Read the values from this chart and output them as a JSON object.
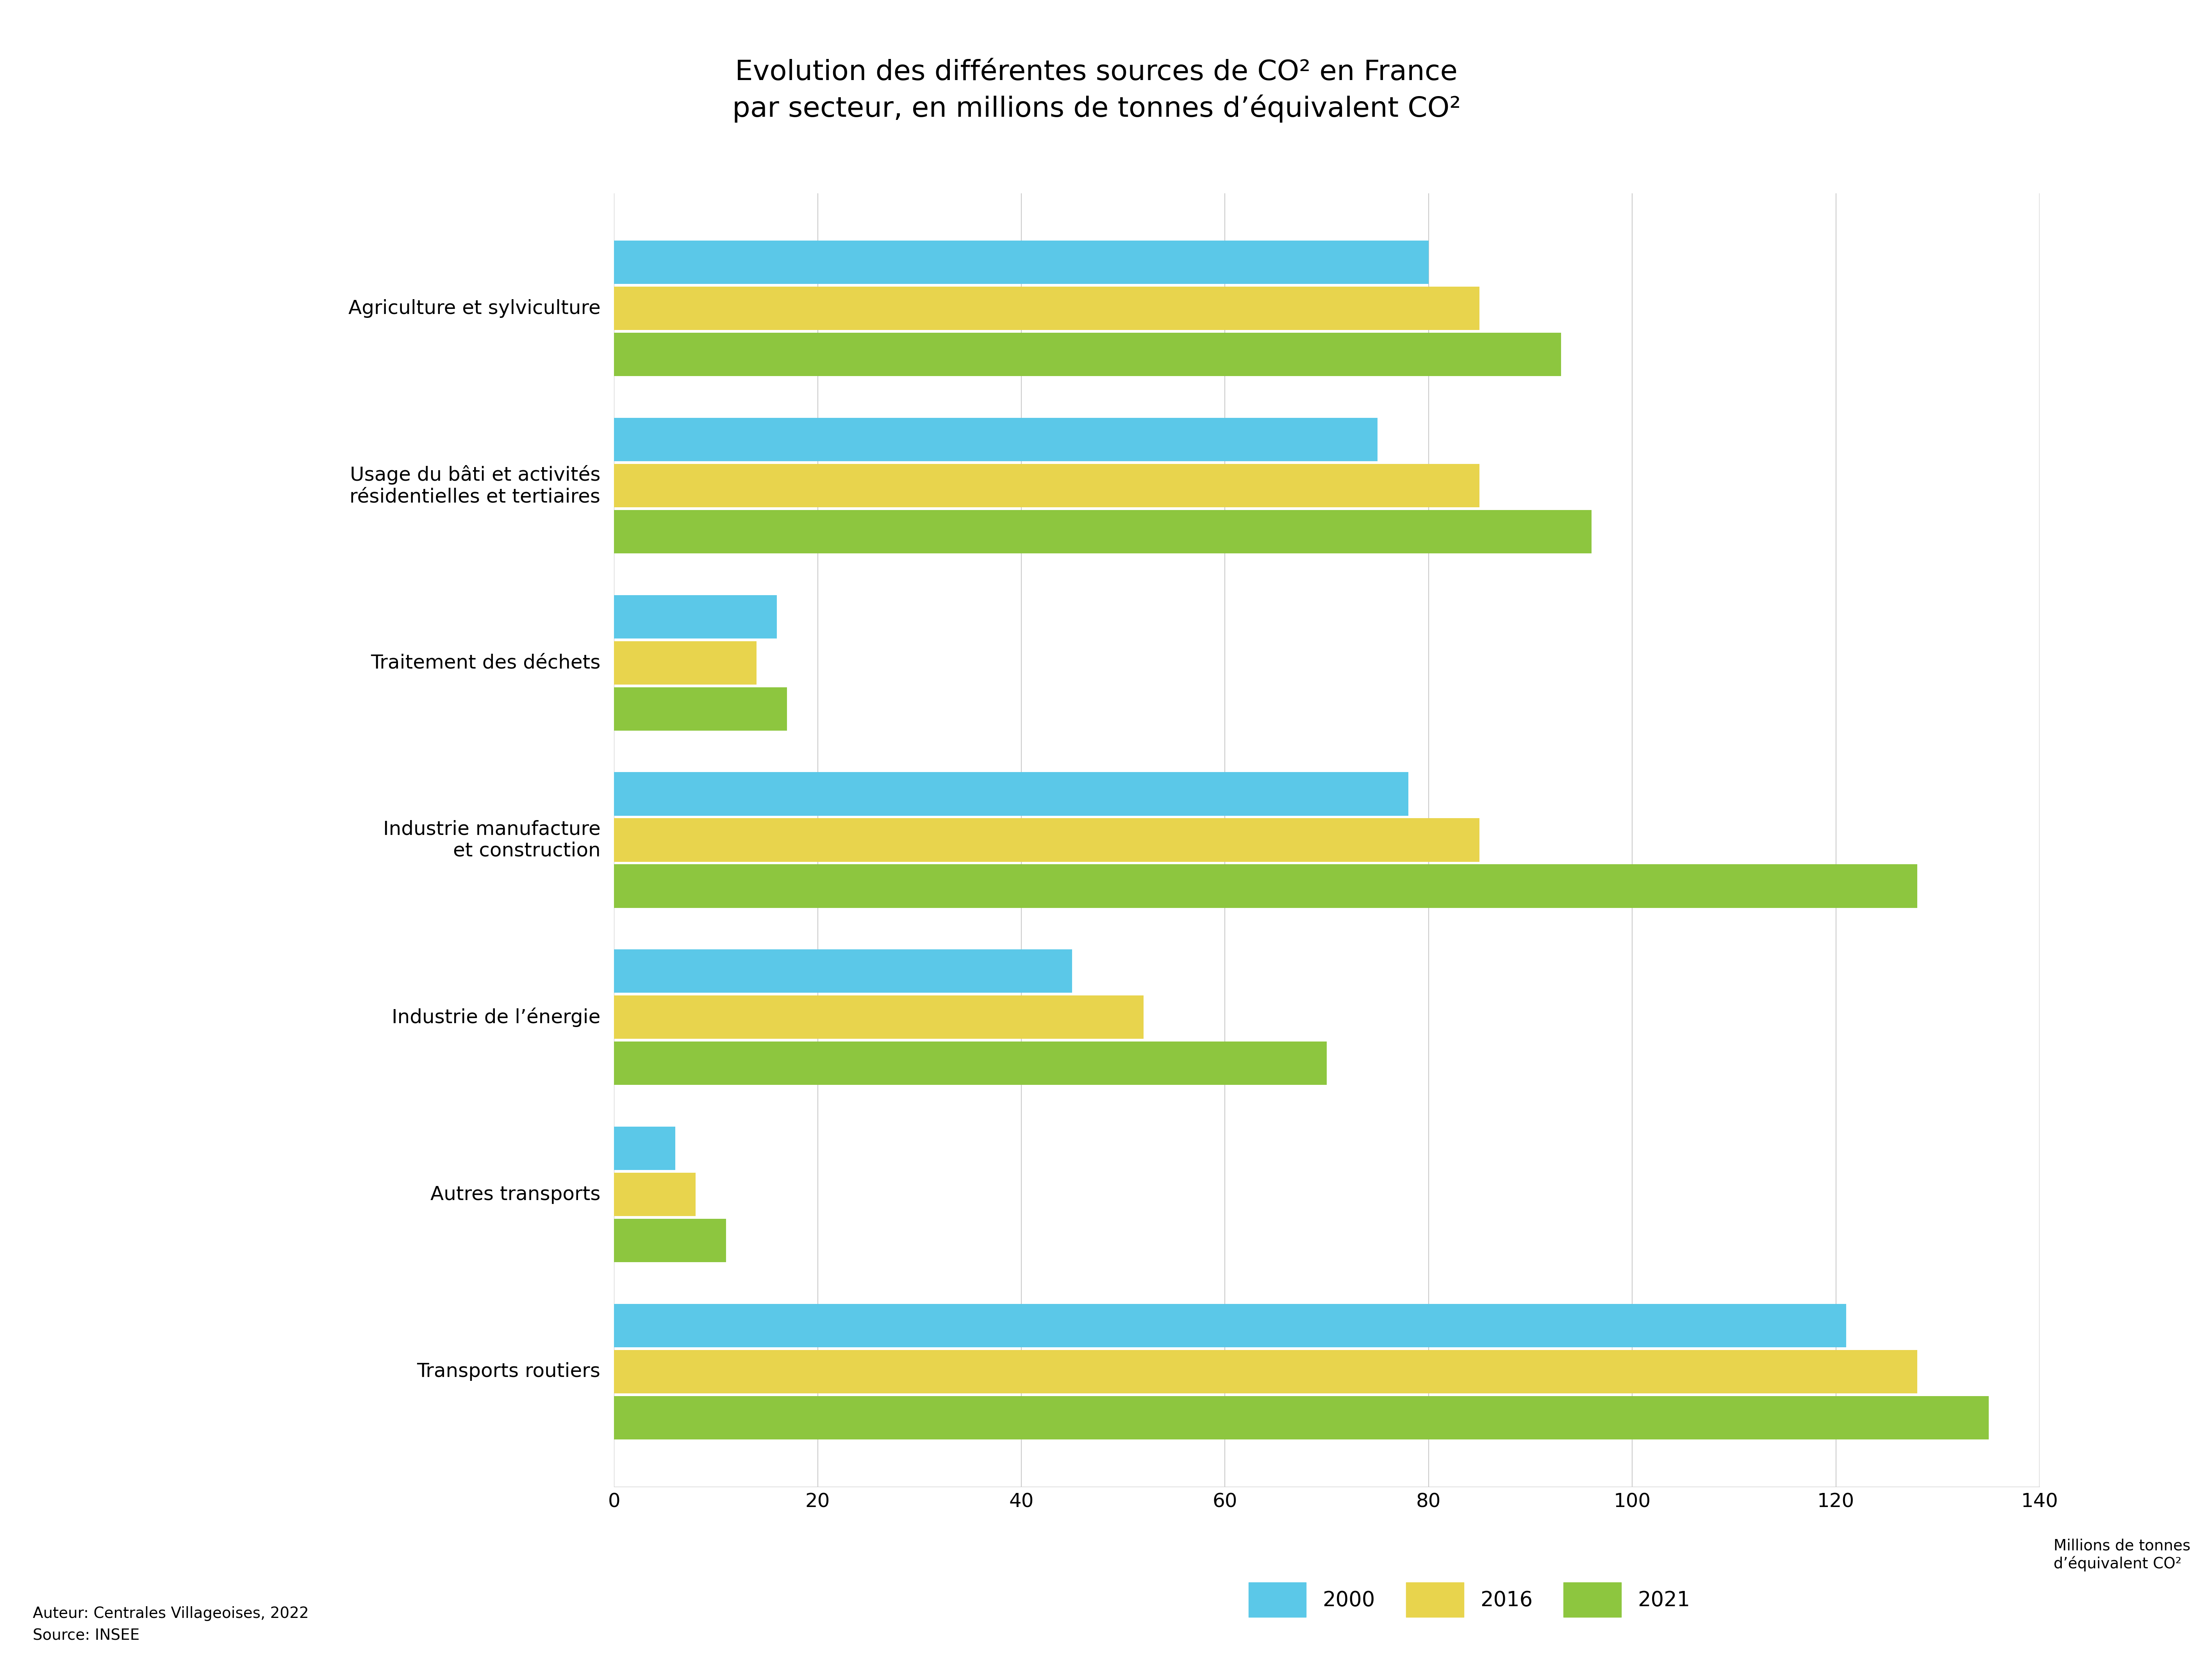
{
  "title_line1": "Evolution des différentes sources de CO² en France",
  "title_line2": "par secteur, en millions de tonnes d’équivalent CO²",
  "categories": [
    "Transports routiers",
    "Autres transports",
    "Industrie de l’énergie",
    "Industrie manufacture\net construction",
    "Traitement des déchets",
    "Usage du bâti et activités\nrésidentielles et tertiaires",
    "Agriculture et sylviculture"
  ],
  "values_2000": [
    121,
    6,
    45,
    78,
    16,
    75,
    80
  ],
  "values_2016": [
    128,
    8,
    52,
    85,
    14,
    85,
    85
  ],
  "values_2021": [
    135,
    11,
    70,
    128,
    17,
    96,
    93
  ],
  "color_2000": "#5BC8E8",
  "color_2016": "#E8D44D",
  "color_2021": "#8DC63F",
  "legend_labels": [
    "2000",
    "2016",
    "2021"
  ],
  "xlim": [
    0,
    140
  ],
  "xticks": [
    0,
    20,
    40,
    60,
    80,
    100,
    120,
    140
  ],
  "ylabel_text": "Millions de tonnes\nd’équivalent CO²",
  "footnote_line1": "Auteur: Centrales Villageoises, 2022",
  "footnote_line2": "Source: INSEE",
  "background_color": "#FFFFFF",
  "bar_height": 0.26,
  "title_fontsize": 52,
  "tick_fontsize": 36,
  "legend_fontsize": 38,
  "ylabel_fontsize": 28,
  "footnote_fontsize": 28,
  "label_fontsize": 36
}
